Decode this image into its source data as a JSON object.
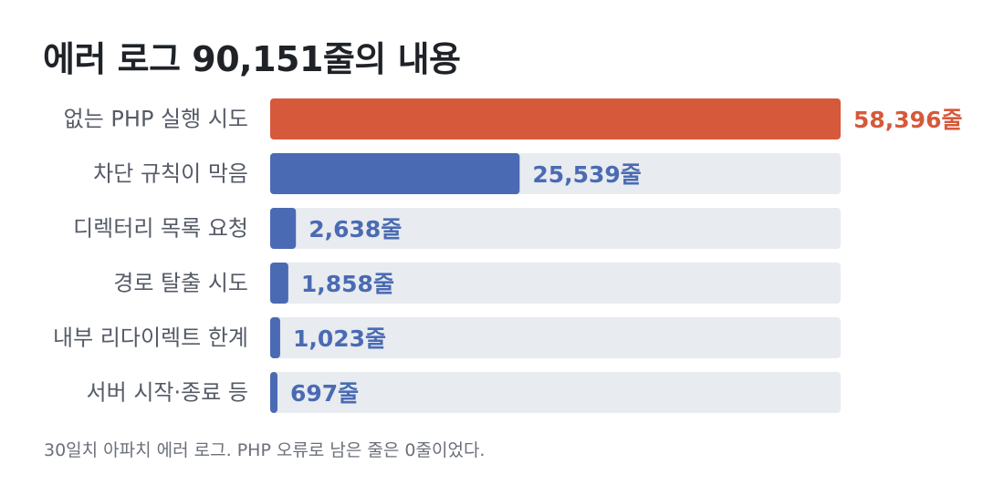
{
  "title": "에러 로그 90,151줄의 내용",
  "footnote": "30일치 아파치 에러 로그. PHP 오류로 남은 줄은 0줄이었다.",
  "colors": {
    "highlight": "#d6593b",
    "bar": "#4a6bb3",
    "track": "#e8ebf0",
    "label": "#555b66",
    "title": "#1f2328",
    "footnote": "#6b7078"
  },
  "chart_data": {
    "type": "bar",
    "orientation": "horizontal",
    "title": "에러 로그 90,151줄의 내용",
    "categories": [
      "없는 PHP 실행 시도",
      "차단 규칙이 막음",
      "디렉터리 목록 요청",
      "경로 탈출 시도",
      "내부 리다이렉트 한계",
      "서버 시작·종료 등"
    ],
    "values": [
      58396,
      25539,
      2638,
      1858,
      1023,
      697
    ],
    "value_labels": [
      "58,396줄",
      "25,539줄",
      "2,638줄",
      "1,858줄",
      "1,023줄",
      "697줄"
    ],
    "highlight_index": 0,
    "xlim": [
      0,
      58396
    ],
    "xlabel": "",
    "ylabel": "",
    "grid": false,
    "legend": "none"
  }
}
